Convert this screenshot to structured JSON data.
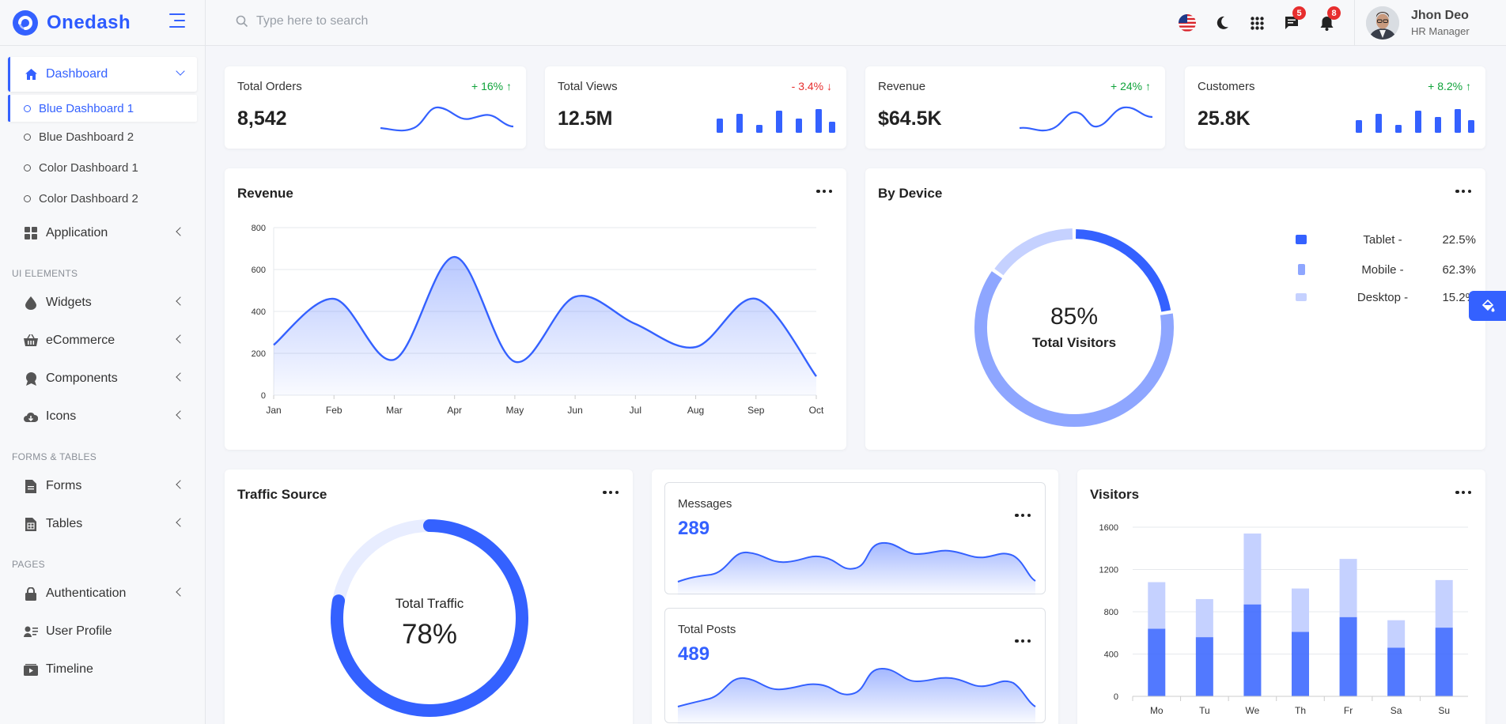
{
  "brand": {
    "name": "Onedash"
  },
  "search": {
    "placeholder": "Type here to search"
  },
  "user": {
    "name": "Jhon Deo",
    "role": "HR Manager"
  },
  "notifications": {
    "messages_count": "5",
    "alerts_count": "8"
  },
  "sidebar": {
    "dashboard": "Dashboard",
    "dashboard_items": [
      "Blue Dashboard 1",
      "Blue Dashboard 2",
      "Color Dashboard 1",
      "Color Dashboard 2"
    ],
    "application": "Application",
    "section_ui": "UI ELEMENTS",
    "widgets": "Widgets",
    "ecommerce": "eCommerce",
    "components": "Components",
    "icons": "Icons",
    "section_forms": "FORMS & TABLES",
    "forms": "Forms",
    "tables": "Tables",
    "section_pages": "PAGES",
    "authentication": "Authentication",
    "user_profile": "User Profile",
    "timeline": "Timeline"
  },
  "stats": [
    {
      "title": "Total Orders",
      "value": "8,542",
      "delta": "+ 16%",
      "trend": "up"
    },
    {
      "title": "Total Views",
      "value": "12.5M",
      "delta": "- 3.4%",
      "trend": "down"
    },
    {
      "title": "Revenue",
      "value": "$64.5K",
      "delta": "+ 24%",
      "trend": "up"
    },
    {
      "title": "Customers",
      "value": "25.8K",
      "delta": "+ 8.2%",
      "trend": "up"
    }
  ],
  "revenue_card": {
    "title": "Revenue"
  },
  "device_card": {
    "title": "By Device",
    "center_value": "85%",
    "center_label": "Total Visitors",
    "legend": [
      {
        "name": "Tablet -",
        "pct": "22.5%",
        "color": "#3461ff"
      },
      {
        "name": "Mobile -",
        "pct": "62.3%",
        "color": "#8ea6ff"
      },
      {
        "name": "Desktop -",
        "pct": "15.2%",
        "color": "#c5d1ff"
      }
    ]
  },
  "traffic_card": {
    "title": "Traffic Source",
    "label": "Total Traffic",
    "value": "78%"
  },
  "messages_card": {
    "title": "Messages",
    "value": "289"
  },
  "posts_card": {
    "title": "Total Posts",
    "value": "489"
  },
  "visitors_card": {
    "title": "Visitors"
  },
  "colors": {
    "primary": "#3461ff",
    "light": "#c5d1ff",
    "mid": "#8ea6ff",
    "up": "#0fa33a",
    "down": "#e72e2e"
  },
  "chart_data": [
    {
      "type": "area",
      "title": "Revenue",
      "categories": [
        "Jan",
        "Feb",
        "Mar",
        "Apr",
        "May",
        "Jun",
        "Jul",
        "Aug",
        "Sep",
        "Oct"
      ],
      "values": [
        240,
        460,
        170,
        660,
        160,
        470,
        340,
        230,
        460,
        90
      ],
      "ylim": [
        0,
        800
      ],
      "yticks": [
        0,
        200,
        400,
        600,
        800
      ],
      "grid": true
    },
    {
      "type": "pie",
      "title": "By Device",
      "categories": [
        "Tablet",
        "Mobile",
        "Desktop"
      ],
      "values": [
        22.5,
        62.3,
        15.2
      ]
    },
    {
      "type": "bar",
      "title": "Visitors",
      "categories": [
        "Mo",
        "Tu",
        "We",
        "Th",
        "Fr",
        "Sa",
        "Su"
      ],
      "series": [
        {
          "values": [
            640,
            560,
            870,
            610,
            750,
            460,
            650
          ]
        },
        {
          "values": [
            440,
            360,
            670,
            410,
            550,
            260,
            450
          ]
        }
      ],
      "stacked": true,
      "ylim": [
        0,
        1600
      ],
      "yticks": [
        0,
        400,
        800,
        1200,
        1600
      ],
      "grid": true
    },
    {
      "type": "pie",
      "title": "Traffic Source",
      "values": [
        78,
        22
      ]
    }
  ]
}
